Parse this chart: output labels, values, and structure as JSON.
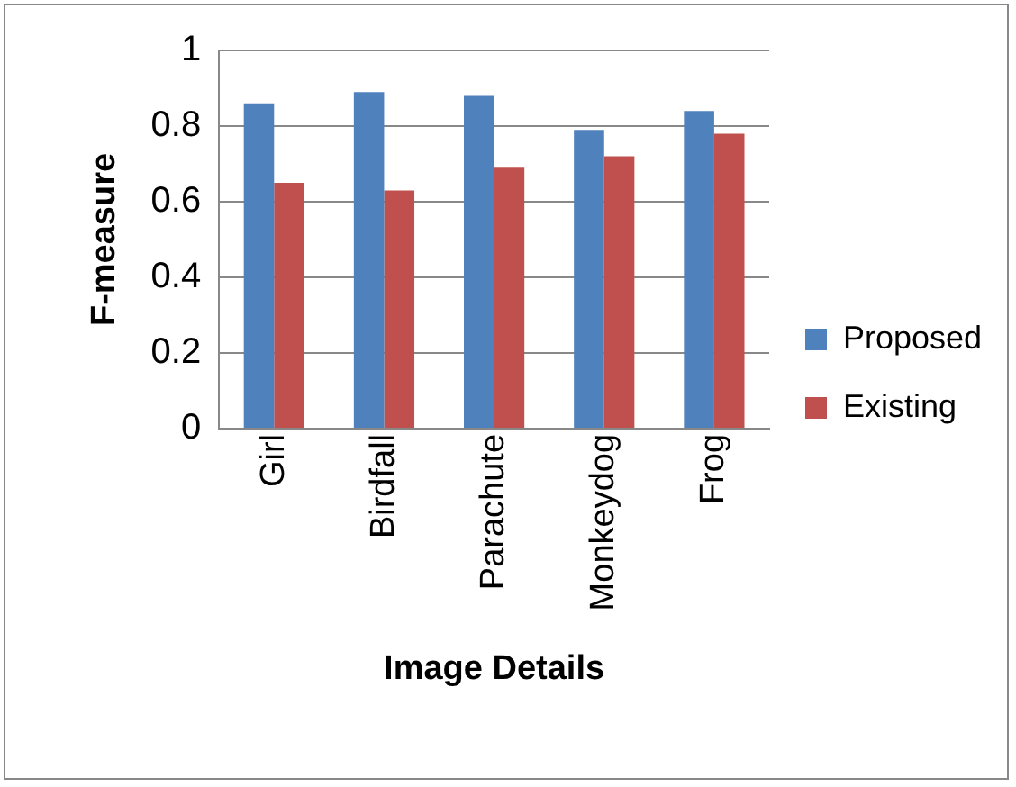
{
  "chart_data": {
    "type": "bar",
    "xlabel": "Image Details",
    "ylabel": "F-measure",
    "categories": [
      "Girl",
      "Birdfall",
      "Parachute",
      "Monkeydog",
      "Frog"
    ],
    "series": [
      {
        "name": "Proposed",
        "color": "#4f81bd",
        "values": [
          0.86,
          0.89,
          0.88,
          0.79,
          0.84
        ]
      },
      {
        "name": "Existing",
        "color": "#c0504d",
        "values": [
          0.65,
          0.63,
          0.69,
          0.72,
          0.78
        ]
      }
    ],
    "ylim": [
      0,
      1
    ],
    "yticks": [
      0,
      0.2,
      0.4,
      0.6,
      0.8,
      1
    ],
    "grid": "y",
    "legend": "right"
  }
}
